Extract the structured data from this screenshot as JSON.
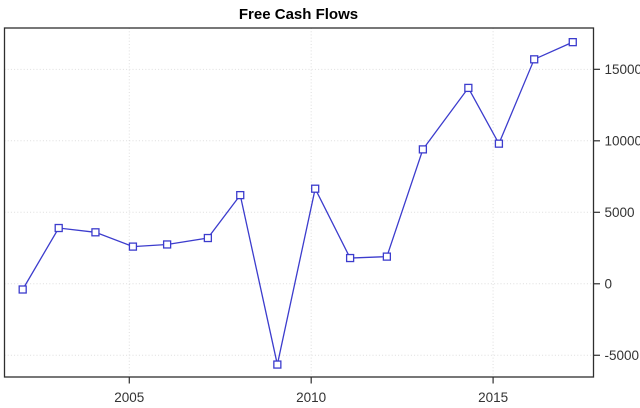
{
  "chart_data": {
    "type": "line",
    "title": "Free Cash Flows",
    "xlabel": "",
    "ylabel": "",
    "categories": [
      2002,
      2003,
      2004,
      2005,
      2006,
      2007,
      2008,
      2009,
      2010,
      2011,
      2012,
      2013,
      2014,
      2015,
      2016,
      2017
    ],
    "x": [
      2002.07,
      2003.06,
      2004.07,
      2005.1,
      2006.04,
      2007.16,
      2008.05,
      2009.07,
      2010.11,
      2011.07,
      2012.08,
      2013.07,
      2014.32,
      2015.16,
      2016.13,
      2017.19
    ],
    "values": [
      -400,
      3900,
      3600,
      2600,
      2750,
      3200,
      6200,
      -5650,
      6650,
      1800,
      1900,
      9400,
      13700,
      9800,
      15700,
      16900
    ],
    "series_name": "Free Cash Flows",
    "x_ticks": [
      2005,
      2010,
      2015
    ],
    "x_tick_labels": [
      "2005",
      "2010",
      "2015"
    ],
    "y_ticks": [
      -5000,
      0,
      5000,
      10000,
      15000
    ],
    "y_tick_labels": [
      "-5000",
      "0",
      "5000",
      "10000",
      "15000"
    ],
    "xlim": [
      2001.57,
      2017.76
    ],
    "ylim": [
      -6520,
      17890
    ],
    "grid": true,
    "grid_style": "dotted",
    "legend_position": "none",
    "y_axis_side": "right",
    "marker": "open-square",
    "colors": {
      "line": "#3c3ccd",
      "marker_fill": "#ffffff",
      "grid": "#dedede",
      "frame": "#2e2e2e",
      "tick_label": "#333333",
      "title": "#000000",
      "background": "#ffffff"
    }
  }
}
